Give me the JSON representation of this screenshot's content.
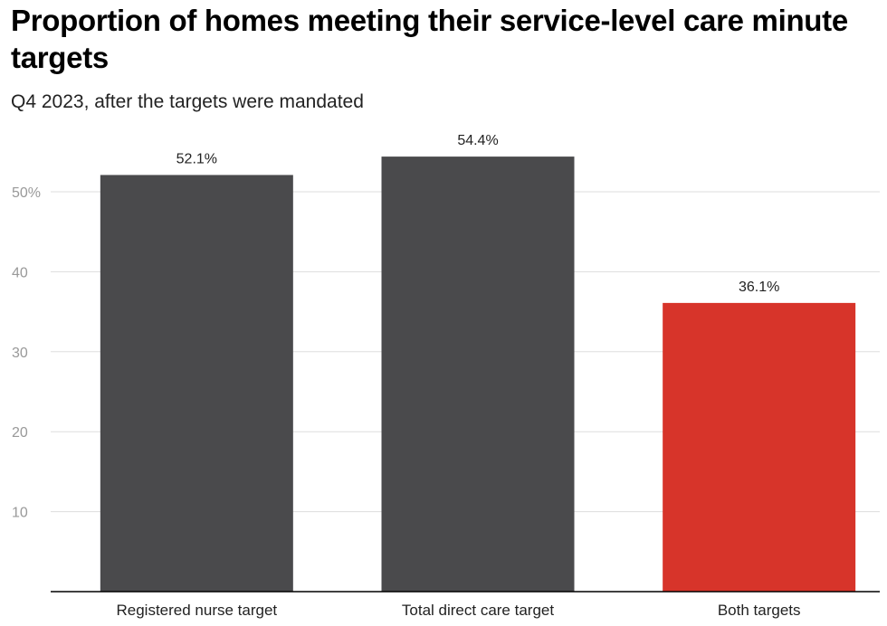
{
  "chart_data": {
    "type": "bar",
    "title": "Proportion of homes meeting their service-level care minute targets",
    "subtitle": "Q4 2023, after the targets were mandated",
    "categories": [
      "Registered nurse target",
      "Total direct care target",
      "Both targets"
    ],
    "values": [
      52.1,
      54.4,
      36.1
    ],
    "value_labels": [
      "52.1%",
      "54.4%",
      "36.1%"
    ],
    "bar_colors": [
      "#4a4a4c",
      "#4a4a4c",
      "#d7342a"
    ],
    "ylim": [
      0,
      60
    ],
    "y_ticks": [
      10,
      20,
      30,
      40,
      50
    ],
    "y_tick_labels": [
      "10",
      "20",
      "30",
      "40",
      "50%"
    ],
    "grid": true,
    "xlabel": "",
    "ylabel": ""
  }
}
